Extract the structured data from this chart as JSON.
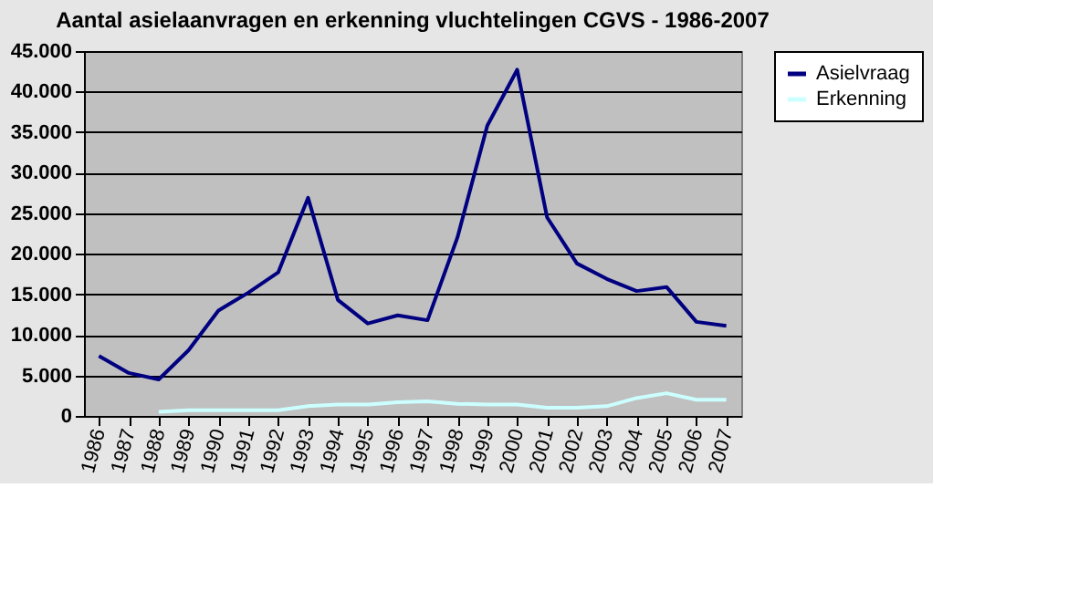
{
  "chart_data": {
    "type": "line",
    "title": "Aantal asielaanvragen en erkenning vluchtelingen CGVS - 1986-2007",
    "categories": [
      "1986",
      "1987",
      "1988",
      "1989",
      "1990",
      "1991",
      "1992",
      "1993",
      "1994",
      "1995",
      "1996",
      "1997",
      "1998",
      "1999",
      "2000",
      "2001",
      "2002",
      "2003",
      "2004",
      "2005",
      "2006",
      "2007"
    ],
    "series": [
      {
        "name": "Asielvraag",
        "color": "#000080",
        "values": [
          7400,
          5300,
          4500,
          8100,
          13000,
          15200,
          17700,
          26900,
          14300,
          11400,
          12400,
          11800,
          22000,
          35800,
          42700,
          24500,
          18800,
          16900,
          15400,
          15900,
          11600,
          11100
        ]
      },
      {
        "name": "Erkenning",
        "color": "#ccffff",
        "values": [
          null,
          null,
          500,
          700,
          700,
          700,
          700,
          1200,
          1400,
          1400,
          1700,
          1800,
          1500,
          1400,
          1400,
          1000,
          1000,
          1200,
          2200,
          2800,
          2000,
          2000
        ]
      }
    ],
    "ylim": [
      0,
      45000
    ],
    "yticks": [
      {
        "value": 0,
        "label": "0"
      },
      {
        "value": 5000,
        "label": "5.000"
      },
      {
        "value": 10000,
        "label": "10.000"
      },
      {
        "value": 15000,
        "label": "15.000"
      },
      {
        "value": 20000,
        "label": "20.000"
      },
      {
        "value": 25000,
        "label": "25.000"
      },
      {
        "value": 30000,
        "label": "30.000"
      },
      {
        "value": 35000,
        "label": "35.000"
      },
      {
        "value": 40000,
        "label": "40.000"
      },
      {
        "value": 45000,
        "label": "45.000"
      }
    ],
    "grid": "y",
    "legend": "right",
    "marker": "none",
    "line_style": "solid"
  }
}
